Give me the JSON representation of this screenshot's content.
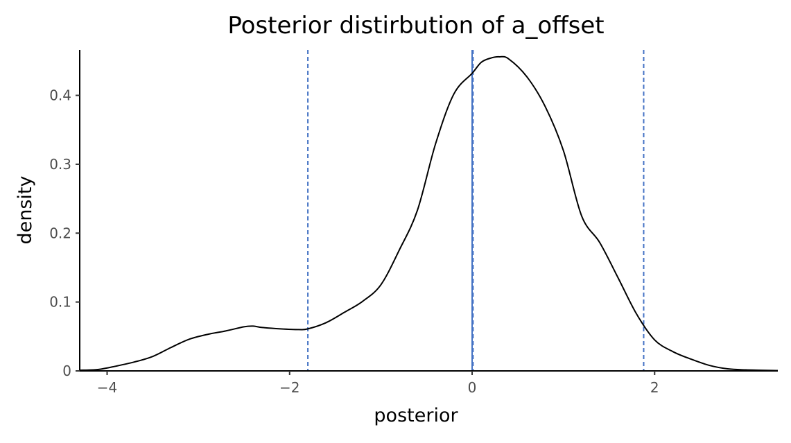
{
  "chart_data": {
    "type": "line",
    "title": "Posterior distirbution of a_offset",
    "xlabel": "posterior",
    "ylabel": "density",
    "xlim": [
      -4.3,
      3.35
    ],
    "ylim": [
      0,
      0.466
    ],
    "x_ticks": [
      {
        "value": -4,
        "label": "−4"
      },
      {
        "value": -2,
        "label": "−2"
      },
      {
        "value": 0,
        "label": "0"
      },
      {
        "value": 2,
        "label": "2"
      }
    ],
    "y_ticks": [
      {
        "value": 0,
        "label": "0"
      },
      {
        "value": 0.1,
        "label": "0.1"
      },
      {
        "value": 0.2,
        "label": "0.2"
      },
      {
        "value": 0.3,
        "label": "0.3"
      },
      {
        "value": 0.4,
        "label": "0.4"
      }
    ],
    "grid": false,
    "legend": "none",
    "series": [
      {
        "color": "#000000",
        "x": [
          -4.3,
          -4.1,
          -3.9,
          -3.7,
          -3.5,
          -3.3,
          -3.1,
          -2.9,
          -2.7,
          -2.5,
          -2.4,
          -2.3,
          -2.1,
          -1.9,
          -1.8,
          -1.6,
          -1.4,
          -1.2,
          -1.0,
          -0.8,
          -0.6,
          -0.4,
          -0.2,
          0.0,
          0.1,
          0.2,
          0.3,
          0.4,
          0.6,
          0.8,
          1.0,
          1.2,
          1.4,
          1.6,
          1.8,
          2.0,
          2.2,
          2.4,
          2.6,
          2.8,
          3.0,
          3.35
        ],
        "y": [
          0.001,
          0.002,
          0.007,
          0.013,
          0.021,
          0.034,
          0.046,
          0.053,
          0.058,
          0.064,
          0.065,
          0.063,
          0.061,
          0.06,
          0.061,
          0.07,
          0.085,
          0.101,
          0.125,
          0.175,
          0.233,
          0.33,
          0.402,
          0.432,
          0.448,
          0.454,
          0.456,
          0.453,
          0.427,
          0.384,
          0.32,
          0.225,
          0.186,
          0.135,
          0.083,
          0.045,
          0.028,
          0.017,
          0.008,
          0.003,
          0.0015,
          0.0005
        ]
      }
    ],
    "vlines": [
      {
        "x": -1.8,
        "style": "dashed",
        "color": "#4472c4"
      },
      {
        "x": 0.0,
        "style": "solid",
        "color": "#4472c4"
      },
      {
        "x": 0.01,
        "style": "dashed",
        "color": "#4472c4"
      },
      {
        "x": 1.88,
        "style": "dashed",
        "color": "#4472c4"
      }
    ]
  }
}
